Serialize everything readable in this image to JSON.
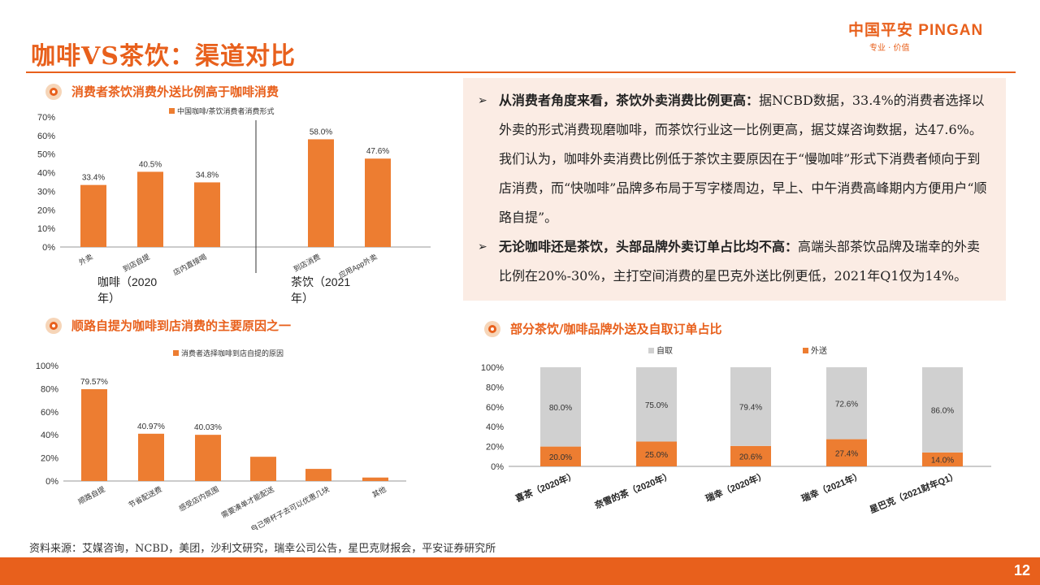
{
  "header": {
    "title": "咖啡VS茶饮：渠道对比",
    "logo_text": "中国平安 PINGAN",
    "slogan": "专业 · 价值"
  },
  "sections": {
    "s1_title": "消费者茶饮消费外送比例高于咖啡消费",
    "s2_title": "顺路自提为咖啡到店消费的主要原因之一",
    "s3_title": "部分茶饮/咖啡品牌外送及自取订单占比"
  },
  "bullets": [
    {
      "lead": "从消费者角度来看，茶饮外卖消费比例更高：",
      "body": "据NCBD数据，33.4%的消费者选择以外卖的形式消费现磨咖啡，而茶饮行业这一比例更高，据艾媒咨询数据，达47.6%。我们认为，咖啡外卖消费比例低于茶饮主要原因在于“慢咖啡”形式下消费者倾向于到店消费，而“快咖啡”品牌多布局于写字楼周边，早上、中午消费高峰期内方便用户“顺路自提”。"
    },
    {
      "lead": "无论咖啡还是茶饮，头部品牌外卖订单占比均不高：",
      "body": "高端头部茶饮品牌及瑞幸的外卖比例在20%-30%，主打空间消费的星巴克外送比例更低，2021年Q1仅为14%。"
    }
  ],
  "footer": {
    "source": "资料来源：艾媒咨询，NCBD，美团，沙利文研究，瑞幸公司公告，星巴克财报会，平安证券研究所",
    "page_number": "12"
  },
  "colors": {
    "accent": "#e8601c",
    "bar": "#ed7d31",
    "gray": "#d0d0d0"
  },
  "chart_data": [
    {
      "type": "bar",
      "legend": "中国咖啡/茶饮消费者消费形式",
      "yticks": [
        "0%",
        "10%",
        "20%",
        "30%",
        "40%",
        "50%",
        "60%",
        "70%"
      ],
      "ylim": [
        0,
        70
      ],
      "groups": [
        {
          "label": "咖啡（2020年）",
          "categories": [
            "外卖",
            "到店自提",
            "店内直接喝"
          ],
          "values": [
            33.4,
            40.5,
            34.8
          ],
          "value_labels": [
            "33.4%",
            "40.5%",
            "34.8%"
          ]
        },
        {
          "label": "茶饮（2021年）",
          "categories": [
            "到店消费",
            "应用App外卖"
          ],
          "values": [
            58.0,
            47.6
          ],
          "value_labels": [
            "58.0%",
            "47.6%"
          ]
        }
      ]
    },
    {
      "type": "bar",
      "legend": "消费者选择咖啡到店自提的原因",
      "yticks": [
        "0%",
        "20%",
        "40%",
        "60%",
        "80%",
        "100%"
      ],
      "ylim": [
        0,
        100
      ],
      "categories": [
        "顺路自提",
        "节省配送费",
        "感受店内氛围",
        "需要凑单才能配送",
        "自己带杯子去可以优惠几块",
        "其他"
      ],
      "values": [
        79.57,
        40.97,
        40.03,
        21,
        10.5,
        3
      ],
      "value_labels": [
        "79.57%",
        "40.97%",
        "40.03%",
        "",
        "",
        ""
      ]
    },
    {
      "type": "bar",
      "stacked": true,
      "legend": [
        "自取",
        "外送"
      ],
      "yticks": [
        "0%",
        "20%",
        "40%",
        "60%",
        "80%",
        "100%"
      ],
      "ylim": [
        0,
        100
      ],
      "categories": [
        "喜茶（2020年）",
        "奈雪的茶（2020年）",
        "瑞幸（2020年）",
        "瑞幸（2021年）",
        "星巴克（2021财年Q1）"
      ],
      "series": [
        {
          "name": "外送",
          "values": [
            20.0,
            25.0,
            20.6,
            27.4,
            14.0
          ],
          "labels": [
            "20.0%",
            "25.0%",
            "20.6%",
            "27.4%",
            "14.0%"
          ]
        },
        {
          "name": "自取",
          "values": [
            80.0,
            75.0,
            79.4,
            72.6,
            86.0
          ],
          "labels": [
            "80.0%",
            "75.0%",
            "79.4%",
            "72.6%",
            "86.0%"
          ]
        }
      ]
    }
  ]
}
